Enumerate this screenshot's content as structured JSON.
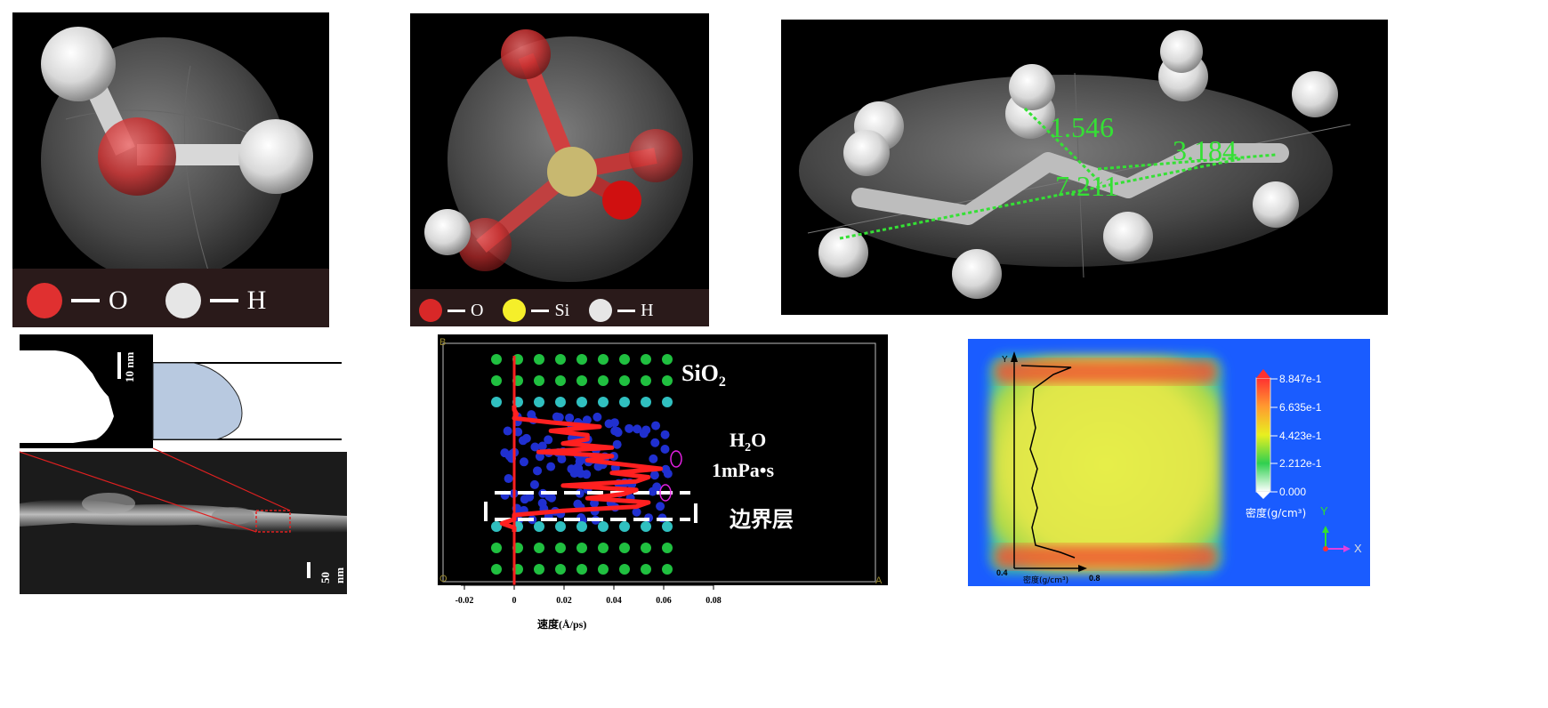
{
  "panel_water": {
    "legend": [
      {
        "symbol": "red-circle",
        "label": "O",
        "color": "#e03030"
      },
      {
        "symbol": "white-circle",
        "label": "H",
        "color": "#e6e6e6"
      }
    ]
  },
  "panel_silanol": {
    "legend": [
      {
        "symbol": "red-circle",
        "label": "O",
        "color": "#d82828"
      },
      {
        "symbol": "yellow-circle",
        "label": "Si",
        "color": "#f5ef2a"
      },
      {
        "symbol": "white-circle",
        "label": "H",
        "color": "#e6e6e6"
      }
    ]
  },
  "panel_alkane": {
    "distances": [
      "1.546",
      "3.184",
      "7.211"
    ],
    "measure_color": "#35e035"
  },
  "panel_tem": {
    "scale_small": "10 nm",
    "scale_large": "50 nm"
  },
  "panel_md": {
    "corner_top_left": "B",
    "corner_bottom_left": "O",
    "corner_bottom_right": "A",
    "label_sio2_main": "SiO",
    "label_sio2_sub": "2",
    "label_water_h": "H",
    "label_water_sub": "2",
    "label_water_o": "O",
    "label_viscosity": "1mPa•s",
    "label_boundary": "边界层",
    "chart_data": {
      "type": "line",
      "xlabel": "速度(Å/ps)",
      "xticks": [
        "-0.02",
        "0",
        "0.02",
        "0.04",
        "0.06",
        "0.08"
      ],
      "xlim": [
        -0.02,
        0.08
      ],
      "series": [
        {
          "color": "#ff2020",
          "values_x": [
            0.0,
            0.0,
            0.001,
            0.0,
            0.015,
            0.035,
            0.015,
            0.03,
            0.03,
            0.02,
            0.04,
            0.01,
            0.04,
            0.03,
            0.045,
            0.06,
            0.04,
            0.055,
            0.05,
            0.02,
            0.05,
            0.045,
            0.03,
            0.055,
            0.05,
            0.02,
            0.0,
            0.0,
            -0.005,
            0.0,
            0.0
          ]
        }
      ]
    }
  },
  "panel_density": {
    "legend_values": [
      "8.847e-1",
      "6.635e-1",
      "4.423e-1",
      "2.212e-1",
      "0.000"
    ],
    "legend_title": "密度(g/cm³)",
    "axis_y": "Y",
    "axis_x": "X",
    "profile_axis_y": "Y",
    "profile_xlabel": "密度(g/cm³)",
    "profile_x_min": "0.4",
    "profile_x_max": "0.8"
  }
}
